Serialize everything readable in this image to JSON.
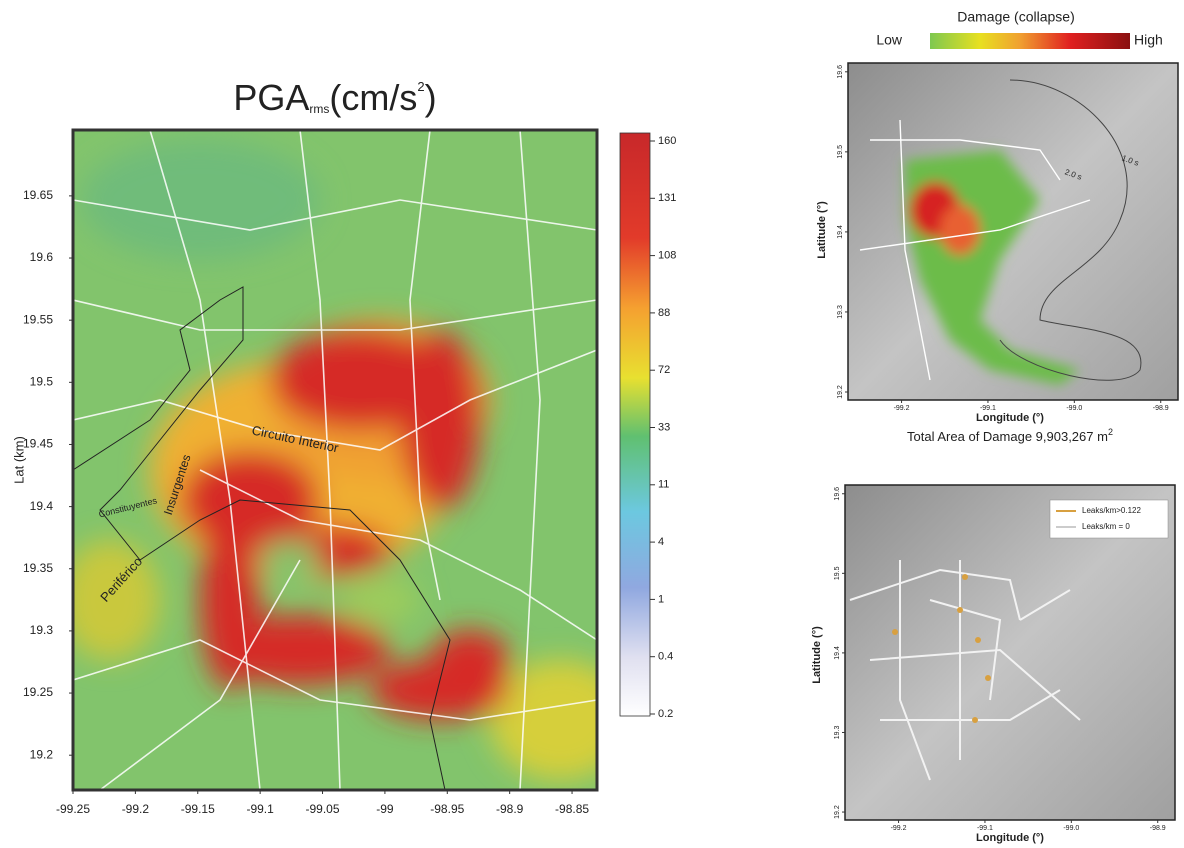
{
  "main_map": {
    "title": {
      "base": "PGA",
      "subscript": "rms",
      "unit": "(cm/s",
      "superscript": "2",
      "close": ")"
    },
    "ylabel": "Lat (km)",
    "xticks": [
      -99.25,
      -99.2,
      -99.15,
      -99.1,
      -99.05,
      -99,
      -98.95,
      -98.9,
      -98.85
    ],
    "yticks": [
      19.2,
      19.25,
      19.3,
      19.35,
      19.4,
      19.45,
      19.5,
      19.55,
      19.6,
      19.65
    ],
    "xlim": [
      -99.25,
      -98.83
    ],
    "ylim": [
      19.172,
      19.703
    ],
    "colorbar_ticks": [
      160,
      131,
      108,
      88,
      72,
      33,
      11,
      4,
      1,
      0.4,
      0.2
    ],
    "road_labels": [
      "Circuito Interior",
      "Insurgentes",
      "Constituyentes",
      "Periférico"
    ]
  },
  "damage_map": {
    "legend_title": "Damage (collapse)",
    "legend_low": "Low",
    "legend_high": "High",
    "xlabel": "Longitude (°)",
    "ylabel": "Latitude (°)",
    "xticks": [
      -99.2,
      -99.1,
      {
        "value": -99,
        "label": "-99.0"
      },
      -98.9
    ],
    "yticks": [
      19.2,
      19.3,
      19.4,
      19.5,
      19.6
    ],
    "xlim": [
      -99.262,
      -98.88
    ],
    "ylim": [
      19.19,
      19.611
    ],
    "contour_labels": [
      "1.0 s",
      "2.0 s"
    ],
    "caption": {
      "text": "Total Area of Damage 9,903,267 m",
      "superscript": "2"
    }
  },
  "leaks_map": {
    "legend": [
      "Leaks/km>0.122",
      "Leaks/km = 0"
    ],
    "xlabel": "Longitude (°)",
    "ylabel": "Latitude (°)",
    "xticks": [
      -99.2,
      -99.1,
      {
        "value": -99,
        "label": "-99.0"
      },
      -98.9
    ],
    "yticks": [
      19.2,
      19.3,
      19.4,
      19.5,
      19.6
    ],
    "xlim": [
      -99.262,
      -98.88
    ],
    "ylim": [
      19.19,
      19.611
    ]
  }
}
